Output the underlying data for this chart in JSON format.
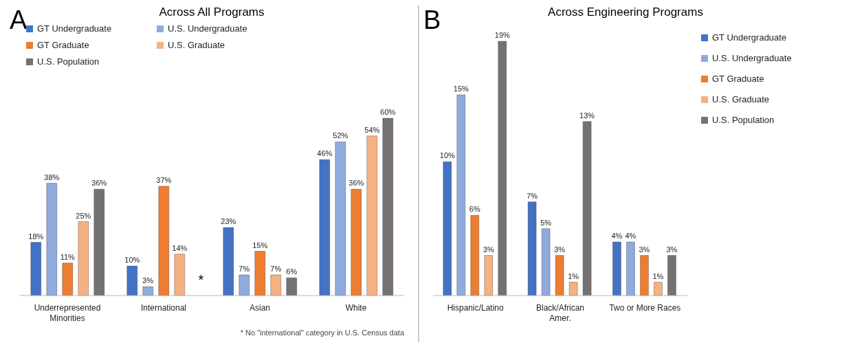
{
  "chart_data": [
    {
      "type": "bar",
      "title": "Across All Programs",
      "categories": [
        "Underrepresented Minorities",
        "International",
        "Asian",
        "White"
      ],
      "grid": false,
      "legend": "top left",
      "series": [
        {
          "name": "GT Undergraduate",
          "color": "#4472c4",
          "values": [
            18,
            10,
            23,
            46
          ],
          "value_labels": [
            "18%",
            "10%",
            "23%",
            "46%"
          ]
        },
        {
          "name": "U.S. Undergraduate",
          "color": "#8faadc",
          "values": [
            38,
            3,
            7,
            52
          ],
          "value_labels": [
            "38%",
            "3%",
            "7%",
            "52%"
          ]
        },
        {
          "name": "GT Graduate",
          "color": "#ed7d31",
          "values": [
            11,
            37,
            15,
            36
          ],
          "value_labels": [
            "11%",
            "37%",
            "15%",
            "36%"
          ]
        },
        {
          "name": "U.S. Graduate",
          "color": "#f4b183",
          "values": [
            25,
            14,
            7,
            54
          ],
          "value_labels": [
            "25%",
            "14%",
            "7%",
            "54%"
          ]
        },
        {
          "name": "U.S. Population",
          "color": "#767171",
          "values": [
            36,
            null,
            6,
            60
          ],
          "value_labels": [
            "36%",
            null,
            "6%",
            "60%"
          ]
        }
      ],
      "annotations": [
        "A",
        "*",
        "* No \"international\" category in U.S. Census data"
      ]
    },
    {
      "type": "bar",
      "title": "Across Engineering Programs",
      "categories": [
        "Hispanic/Latino",
        "Black/African Amer.",
        "Two or More Races"
      ],
      "grid": false,
      "legend": "top right",
      "series": [
        {
          "name": "GT Undergraduate",
          "color": "#4472c4",
          "values": [
            10,
            7,
            4
          ],
          "value_labels": [
            "10%",
            "7%",
            "4%"
          ]
        },
        {
          "name": "U.S. Undergraduate",
          "color": "#8faadc",
          "values": [
            15,
            5,
            4
          ],
          "value_labels": [
            "15%",
            "5%",
            "4%"
          ]
        },
        {
          "name": "GT Graduate",
          "color": "#ed7d31",
          "values": [
            6,
            3,
            3
          ],
          "value_labels": [
            "6%",
            "3%",
            "3%"
          ]
        },
        {
          "name": "U.S. Graduate",
          "color": "#f4b183",
          "values": [
            3,
            1,
            1
          ],
          "value_labels": [
            "3%",
            "1%",
            "1%"
          ]
        },
        {
          "name": "U.S. Population",
          "color": "#767171",
          "values": [
            19,
            13,
            3
          ],
          "value_labels": [
            "19%",
            "13%",
            "3%"
          ]
        }
      ],
      "annotations": [
        "B"
      ]
    }
  ]
}
